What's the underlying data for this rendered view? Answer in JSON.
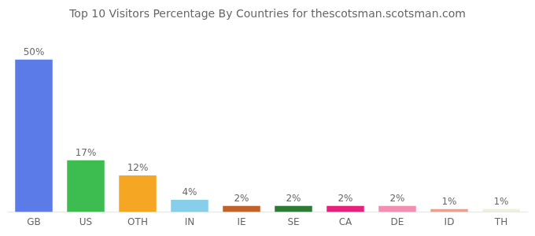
{
  "chart_data": {
    "type": "bar",
    "title": "Top 10 Visitors Percentage By Countries for thescotsman.scotsman.com",
    "categories": [
      "GB",
      "US",
      "OTH",
      "IN",
      "IE",
      "SE",
      "CA",
      "DE",
      "ID",
      "TH"
    ],
    "values": [
      50,
      17,
      12,
      4,
      2,
      2,
      2,
      2,
      1,
      1
    ],
    "value_labels": [
      "50%",
      "17%",
      "12%",
      "4%",
      "2%",
      "2%",
      "2%",
      "2%",
      "1%",
      "1%"
    ],
    "colors": [
      "#5b7be8",
      "#3dbc50",
      "#f5a623",
      "#87ceeb",
      "#c0622a",
      "#2d7a35",
      "#e8217a",
      "#f48fb1",
      "#e8a090",
      "#f0eedc"
    ],
    "ylim": [
      0,
      58
    ],
    "data_labels": true,
    "grid": false,
    "tick_labels": "x"
  }
}
